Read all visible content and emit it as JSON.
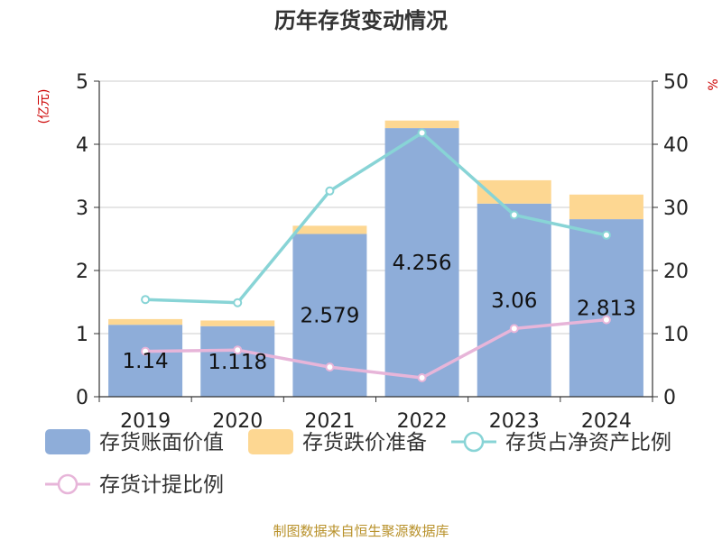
{
  "chart_data": {
    "type": "bar",
    "title": "历年存货变动情况",
    "categories": [
      "2019",
      "2020",
      "2021",
      "2022",
      "2023",
      "2024"
    ],
    "left_axis": {
      "unit_label": "(亿元)",
      "min": 0,
      "max": 5,
      "ticks": [
        "0",
        "1",
        "2",
        "3",
        "4",
        "5"
      ]
    },
    "right_axis": {
      "unit_label": "%",
      "min": 0,
      "max": 50,
      "ticks": [
        "0",
        "10",
        "20",
        "30",
        "40",
        "50"
      ]
    },
    "grid": true,
    "legend_position": "bottom",
    "series": [
      {
        "name": "存货账面价值",
        "kind": "bar",
        "stack": "inv",
        "axis": "left",
        "color": "#8eadd9",
        "values": [
          1.14,
          1.118,
          2.579,
          4.256,
          3.06,
          2.813
        ],
        "labels": [
          "1.14",
          "1.118",
          "2.579",
          "4.256",
          "3.06",
          "2.813"
        ]
      },
      {
        "name": "存货跌价准备",
        "kind": "bar",
        "stack": "inv",
        "axis": "left",
        "color": "#fdd792",
        "values": [
          0.09,
          0.09,
          0.13,
          0.12,
          0.37,
          0.39
        ]
      },
      {
        "name": "存货占净资产比例",
        "kind": "line",
        "axis": "right",
        "color": "#88d4d6",
        "values": [
          15.4,
          14.9,
          32.6,
          41.8,
          28.8,
          25.6
        ]
      },
      {
        "name": "存货计提比例",
        "kind": "line",
        "axis": "right",
        "color": "#e7b5d9",
        "values": [
          7.2,
          7.4,
          4.7,
          3.0,
          10.8,
          12.2
        ]
      }
    ],
    "source": "制图数据来自恒生聚源数据库"
  }
}
